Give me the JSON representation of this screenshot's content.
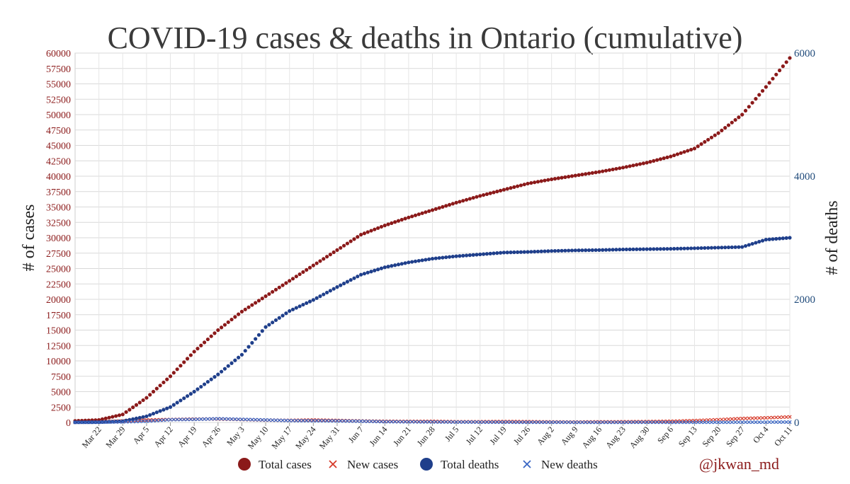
{
  "chart_data": {
    "type": "scatter",
    "title": "COVID-19 cases & deaths in Ontario (cumulative)",
    "ylabel_left": "# of cases",
    "ylabel_right": "# of deaths",
    "ylim_left": [
      0,
      60000
    ],
    "ylim_right": [
      0,
      6000
    ],
    "yticks_left": [
      0,
      2500,
      5000,
      7500,
      10000,
      12500,
      15000,
      17500,
      20000,
      22500,
      25000,
      27500,
      30000,
      32500,
      35000,
      37500,
      40000,
      42500,
      45000,
      47500,
      50000,
      52500,
      55000,
      57500,
      60000
    ],
    "yticks_right": [
      0,
      2000,
      4000,
      6000
    ],
    "xticks": [
      {
        "label": "Mar 22",
        "day": 7
      },
      {
        "label": "Mar 29",
        "day": 14
      },
      {
        "label": "Apr 5",
        "day": 21
      },
      {
        "label": "Apr 12",
        "day": 28
      },
      {
        "label": "Apr 19",
        "day": 35
      },
      {
        "label": "Apr 26",
        "day": 42
      },
      {
        "label": "May 3",
        "day": 49
      },
      {
        "label": "May 10",
        "day": 56
      },
      {
        "label": "May 17",
        "day": 63
      },
      {
        "label": "May 24",
        "day": 70
      },
      {
        "label": "May 31",
        "day": 77
      },
      {
        "label": "Jun 7",
        "day": 84
      },
      {
        "label": "Jun 14",
        "day": 91
      },
      {
        "label": "Jun 21",
        "day": 98
      },
      {
        "label": "Jun 28",
        "day": 105
      },
      {
        "label": "Jul 5",
        "day": 112
      },
      {
        "label": "Jul 12",
        "day": 119
      },
      {
        "label": "Jul 19",
        "day": 126
      },
      {
        "label": "Jul 26",
        "day": 133
      },
      {
        "label": "Aug 2",
        "day": 140
      },
      {
        "label": "Aug 9",
        "day": 147
      },
      {
        "label": "Aug 16",
        "day": 154
      },
      {
        "label": "Aug 23",
        "day": 161
      },
      {
        "label": "Aug 30",
        "day": 168
      },
      {
        "label": "Sep 6",
        "day": 175
      },
      {
        "label": "Sep 13",
        "day": 182
      },
      {
        "label": "Sep 20",
        "day": 189
      },
      {
        "label": "Sep 27",
        "day": 196
      },
      {
        "label": "Oct 4",
        "day": 203
      },
      {
        "label": "Oct 11",
        "day": 210
      }
    ],
    "xlim_day": [
      0,
      210
    ],
    "grid": true,
    "legend_position": "bottom",
    "series": [
      {
        "name": "Total cases",
        "axis": "left",
        "marker": "circle",
        "color": "#8b1a1a",
        "points": [
          [
            0,
            250
          ],
          [
            7,
            400
          ],
          [
            14,
            1300
          ],
          [
            21,
            4000
          ],
          [
            28,
            7500
          ],
          [
            35,
            11500
          ],
          [
            42,
            15000
          ],
          [
            49,
            18000
          ],
          [
            56,
            20500
          ],
          [
            63,
            23000
          ],
          [
            70,
            25500
          ],
          [
            77,
            28000
          ],
          [
            84,
            30500
          ],
          [
            91,
            32000
          ],
          [
            98,
            33300
          ],
          [
            105,
            34500
          ],
          [
            112,
            35700
          ],
          [
            119,
            36800
          ],
          [
            126,
            37800
          ],
          [
            133,
            38800
          ],
          [
            140,
            39500
          ],
          [
            147,
            40100
          ],
          [
            154,
            40700
          ],
          [
            161,
            41400
          ],
          [
            168,
            42200
          ],
          [
            175,
            43200
          ],
          [
            182,
            44500
          ],
          [
            189,
            47000
          ],
          [
            196,
            50000
          ],
          [
            203,
            54500
          ],
          [
            210,
            59200
          ]
        ]
      },
      {
        "name": "New cases",
        "axis": "left",
        "marker": "x",
        "color": "#d63a2a",
        "points": [
          [
            0,
            20
          ],
          [
            7,
            60
          ],
          [
            14,
            250
          ],
          [
            21,
            400
          ],
          [
            28,
            480
          ],
          [
            35,
            550
          ],
          [
            42,
            560
          ],
          [
            49,
            480
          ],
          [
            56,
            380
          ],
          [
            63,
            340
          ],
          [
            70,
            400
          ],
          [
            77,
            330
          ],
          [
            84,
            240
          ],
          [
            91,
            190
          ],
          [
            98,
            170
          ],
          [
            105,
            180
          ],
          [
            112,
            120
          ],
          [
            119,
            120
          ],
          [
            126,
            150
          ],
          [
            133,
            130
          ],
          [
            140,
            90
          ],
          [
            147,
            70
          ],
          [
            154,
            100
          ],
          [
            161,
            110
          ],
          [
            168,
            140
          ],
          [
            175,
            190
          ],
          [
            182,
            300
          ],
          [
            189,
            450
          ],
          [
            196,
            650
          ],
          [
            203,
            750
          ],
          [
            210,
            900
          ]
        ]
      },
      {
        "name": "Total deaths",
        "axis": "right",
        "marker": "circle",
        "color": "#1f3f8b",
        "points": [
          [
            0,
            3
          ],
          [
            7,
            5
          ],
          [
            14,
            20
          ],
          [
            21,
            100
          ],
          [
            28,
            250
          ],
          [
            35,
            500
          ],
          [
            42,
            780
          ],
          [
            49,
            1100
          ],
          [
            56,
            1550
          ],
          [
            63,
            1810
          ],
          [
            70,
            1990
          ],
          [
            77,
            2200
          ],
          [
            84,
            2400
          ],
          [
            91,
            2520
          ],
          [
            98,
            2600
          ],
          [
            105,
            2660
          ],
          [
            112,
            2700
          ],
          [
            119,
            2730
          ],
          [
            126,
            2760
          ],
          [
            133,
            2770
          ],
          [
            140,
            2785
          ],
          [
            147,
            2795
          ],
          [
            154,
            2800
          ],
          [
            161,
            2810
          ],
          [
            168,
            2815
          ],
          [
            175,
            2820
          ],
          [
            182,
            2830
          ],
          [
            189,
            2840
          ],
          [
            196,
            2850
          ],
          [
            203,
            2970
          ],
          [
            210,
            3000
          ]
        ]
      },
      {
        "name": "New deaths",
        "axis": "right",
        "marker": "x",
        "color": "#3a66c4",
        "points": [
          [
            0,
            1
          ],
          [
            7,
            3
          ],
          [
            14,
            8
          ],
          [
            21,
            20
          ],
          [
            28,
            45
          ],
          [
            35,
            50
          ],
          [
            42,
            60
          ],
          [
            49,
            50
          ],
          [
            56,
            40
          ],
          [
            63,
            30
          ],
          [
            70,
            28
          ],
          [
            77,
            25
          ],
          [
            84,
            20
          ],
          [
            91,
            12
          ],
          [
            98,
            10
          ],
          [
            105,
            8
          ],
          [
            112,
            6
          ],
          [
            119,
            5
          ],
          [
            126,
            4
          ],
          [
            133,
            3
          ],
          [
            140,
            3
          ],
          [
            147,
            2
          ],
          [
            154,
            2
          ],
          [
            161,
            2
          ],
          [
            168,
            3
          ],
          [
            175,
            2
          ],
          [
            182,
            3
          ],
          [
            189,
            3
          ],
          [
            196,
            4
          ],
          [
            203,
            5
          ],
          [
            210,
            6
          ]
        ]
      }
    ],
    "credit": "@jkwan_md"
  }
}
